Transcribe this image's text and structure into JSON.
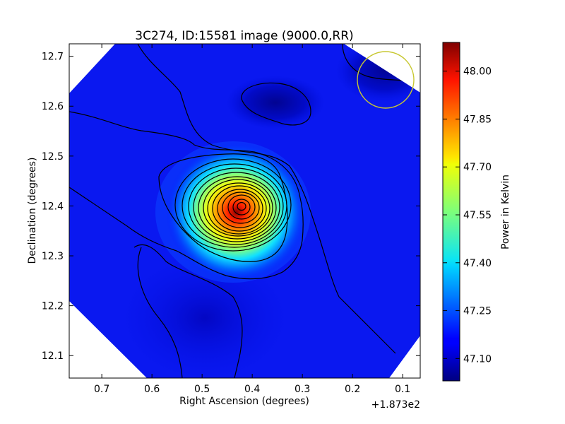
{
  "chart_data": {
    "type": "heatmap",
    "title": "3C274, ID:15581 image (9000.0,RR)",
    "xlabel": "Right Ascension (degrees)",
    "ylabel": "Declination (degrees)",
    "x_offset_label": "+1.873e2",
    "xlim": [
      0.765,
      0.065
    ],
    "ylim": [
      12.055,
      12.725
    ],
    "xticks": [
      0.7,
      0.6,
      0.5,
      0.4,
      0.3,
      0.2,
      0.1
    ],
    "xtick_labels": [
      "0.7",
      "0.6",
      "0.5",
      "0.4",
      "0.3",
      "0.2",
      "0.1"
    ],
    "yticks": [
      12.1,
      12.2,
      12.3,
      12.4,
      12.5,
      12.6,
      12.7
    ],
    "ytick_labels": [
      "12.1",
      "12.2",
      "12.3",
      "12.4",
      "12.5",
      "12.6",
      "12.7"
    ],
    "colorbar": {
      "label": "Power in Kelvin",
      "range": [
        47.03,
        48.09
      ],
      "ticks": [
        47.1,
        47.25,
        47.4,
        47.55,
        47.7,
        47.85,
        48.0
      ],
      "tick_labels": [
        "47.10",
        "47.25",
        "47.40",
        "47.55",
        "47.70",
        "47.85",
        "48.00"
      ],
      "colormap": "jet"
    },
    "peak": {
      "ra": 0.42,
      "dec": 12.4,
      "value": 48.08
    },
    "background_level": 47.12,
    "beam_circle": {
      "ra": 0.13,
      "dec": 12.655,
      "color": "#c8c832"
    },
    "contour_color": "#000000",
    "grid": false
  }
}
